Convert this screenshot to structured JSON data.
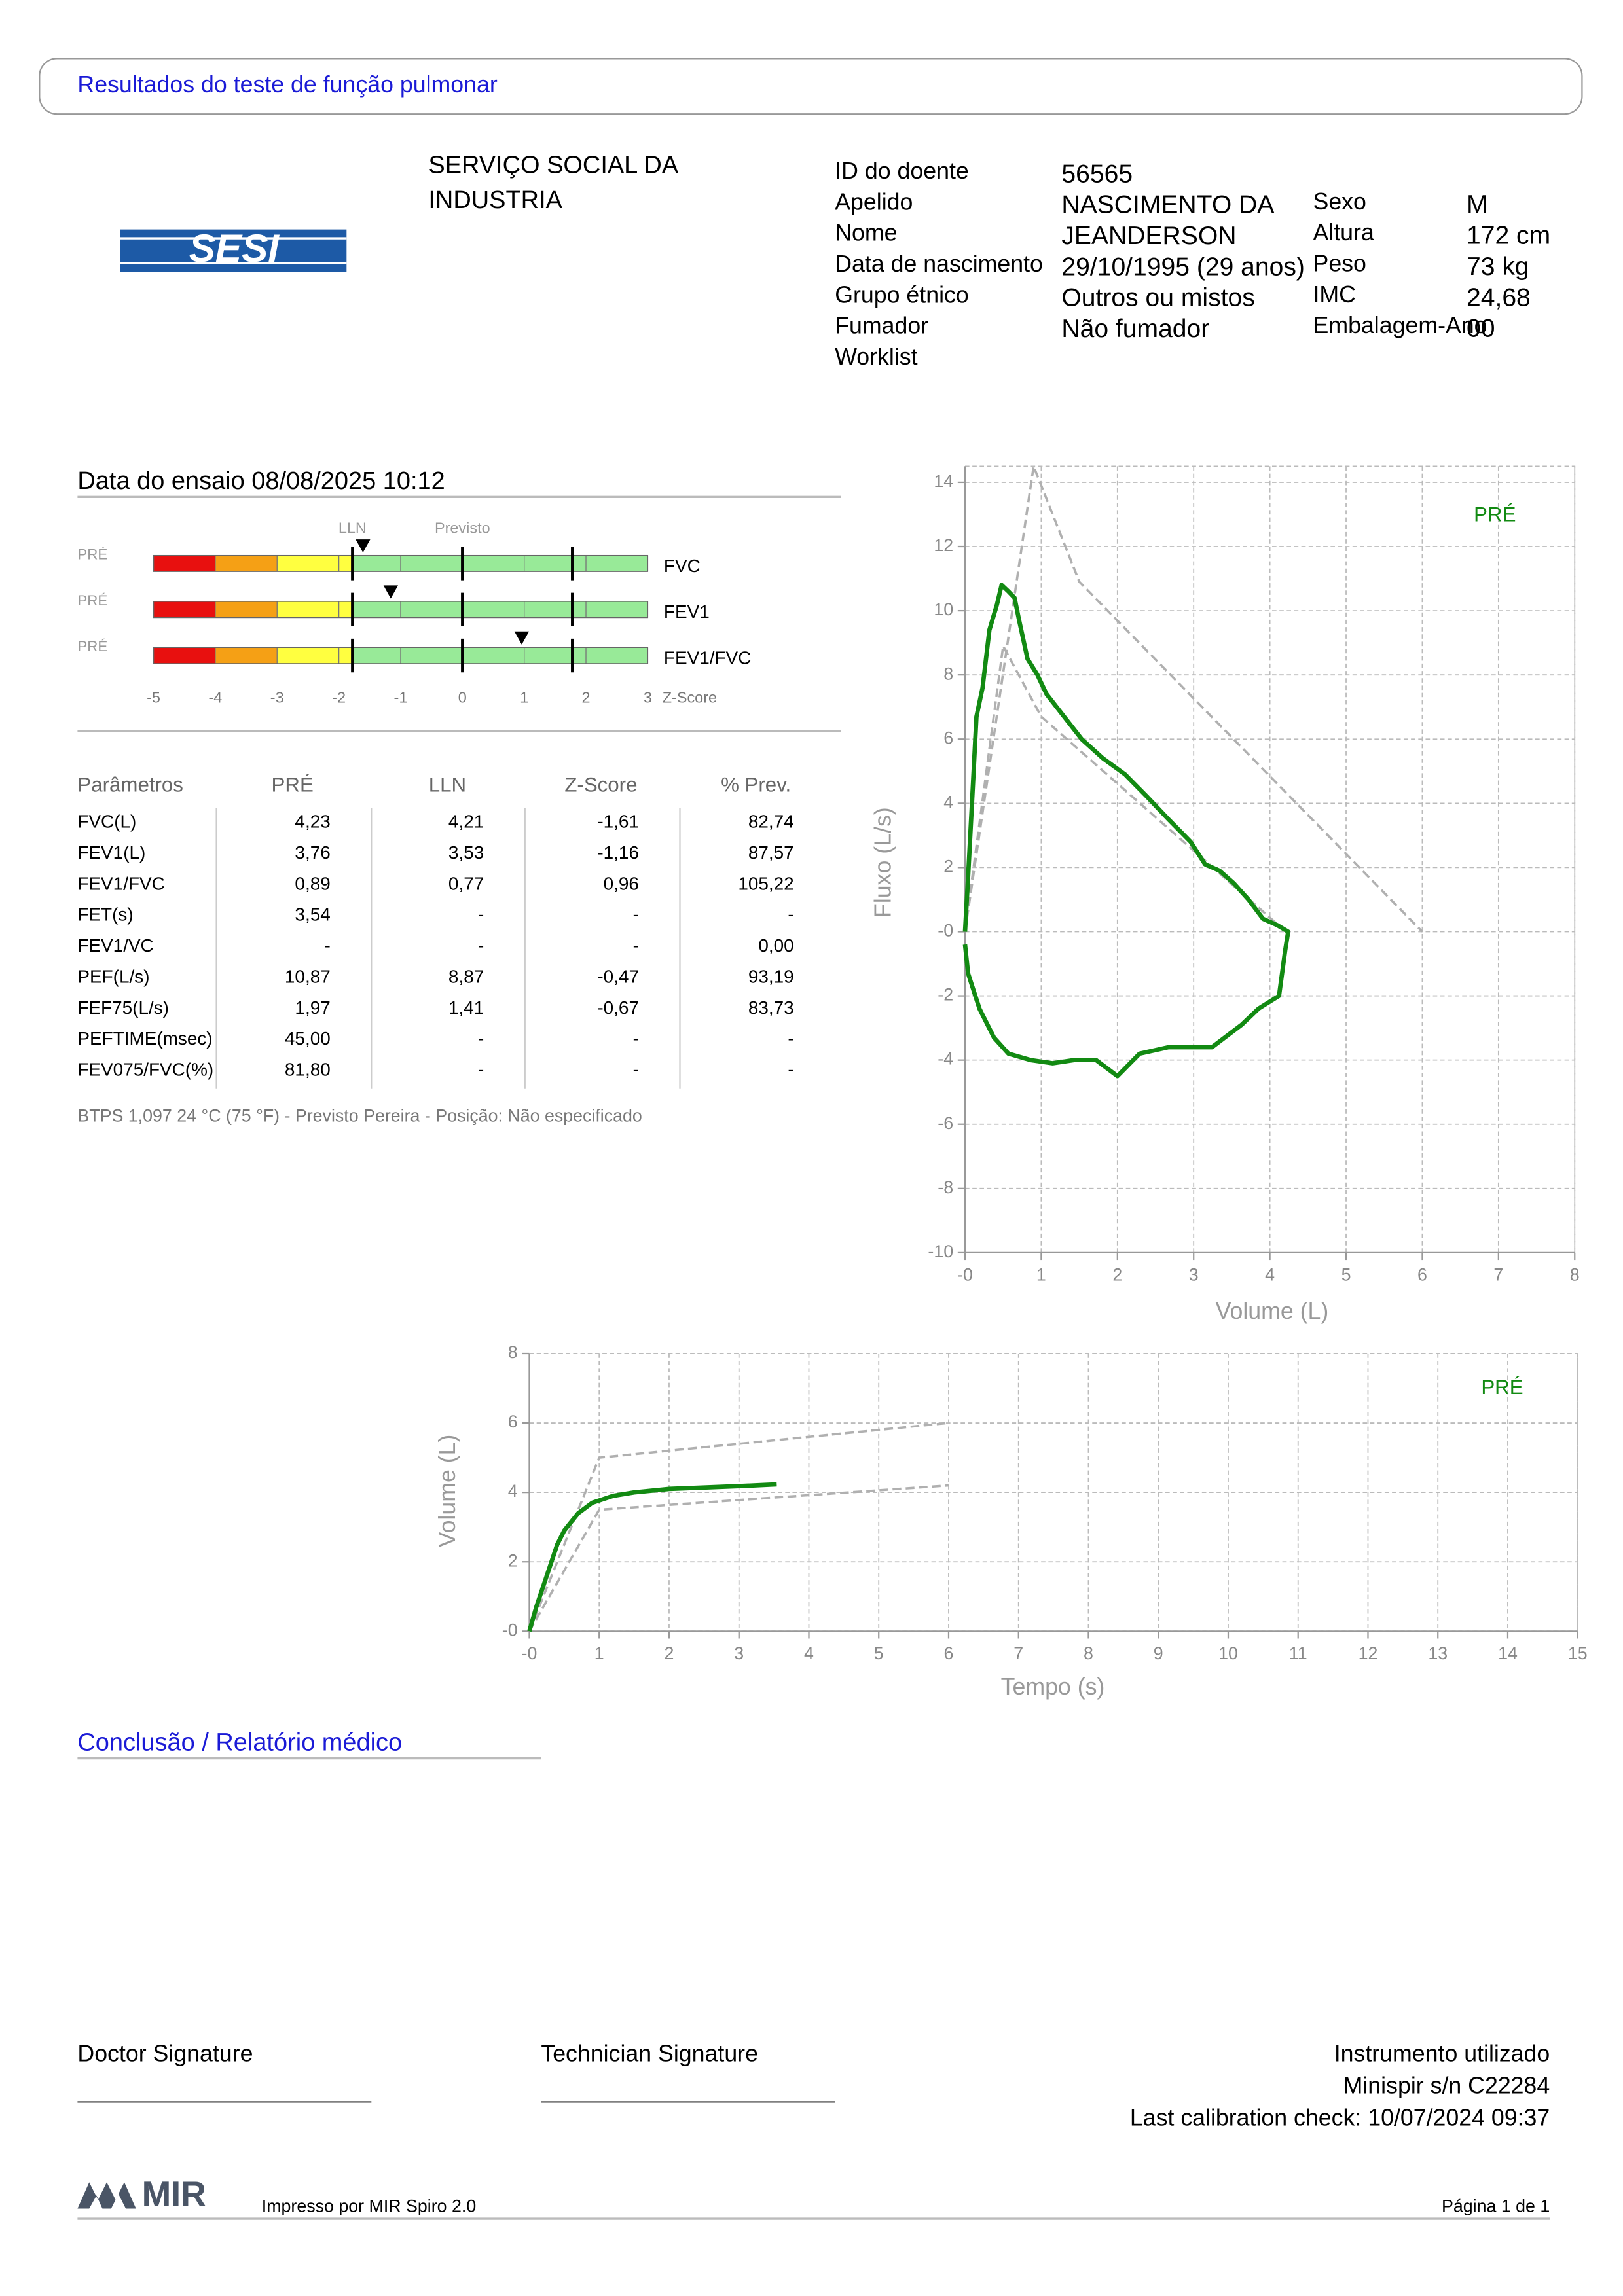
{
  "header": {
    "title": "Resultados do teste de função pulmonar",
    "logo": "SESI",
    "institution": [
      "SERVIÇO SOCIAL DA",
      "INDUSTRIA"
    ]
  },
  "patient": {
    "left": [
      {
        "label": "ID do doente",
        "value": "56565"
      },
      {
        "label": "Apelido",
        "value": "NASCIMENTO DA"
      },
      {
        "label": "Nome",
        "value": "JEANDERSON"
      },
      {
        "label": "Data de nascimento",
        "value": "29/10/1995 (29 anos)"
      },
      {
        "label": "Grupo étnico",
        "value": "Outros ou mistos"
      },
      {
        "label": "Fumador",
        "value": "Não fumador"
      },
      {
        "label": "Worklist"
      }
    ],
    "right": [
      {
        "label": "Sexo",
        "value": "M"
      },
      {
        "label": "Altura",
        "value": "172 cm"
      },
      {
        "label": "Peso",
        "value": "73 kg"
      },
      {
        "label": "IMC",
        "value": "24,68"
      },
      {
        "label": "Embalagem-Ano",
        "value": "00"
      }
    ]
  },
  "test_date": "Data do ensaio 08/08/2025 10:12",
  "zscore_chart": {
    "type": "zscore",
    "xlim": [
      -5,
      3
    ],
    "xticks": [
      -5,
      -4,
      -3,
      -2,
      -1,
      0,
      1,
      2,
      3
    ],
    "x_label": "Z-Score",
    "labels": {
      "lln": "LLN",
      "predicted": "Previsto"
    },
    "lines": [
      -1.78,
      0,
      1.78
    ],
    "zones": [
      {
        "from": -5,
        "to": -4,
        "color": "#e8100f"
      },
      {
        "from": -4,
        "to": -3,
        "color": "#f5a015"
      },
      {
        "from": -3,
        "to": -1.78,
        "color": "#ffff40"
      },
      {
        "from": -1.78,
        "to": 3,
        "color": "#98ea98"
      }
    ],
    "rows": [
      {
        "group": "PRÉ",
        "name": "FVC",
        "value": -1.61
      },
      {
        "group": "PRÉ",
        "name": "FEV1",
        "value": -1.16
      },
      {
        "group": "PRÉ",
        "name": "FEV1/FVC",
        "value": 0.96
      }
    ]
  },
  "table": {
    "header": [
      "Parâmetros",
      "PRÉ",
      "LLN",
      "Z-Score",
      "% Prev."
    ],
    "rows": [
      [
        "FVC(L)",
        "4,23",
        "4,21",
        "-1,61",
        "82,74"
      ],
      [
        "FEV1(L)",
        "3,76",
        "3,53",
        "-1,16",
        "87,57"
      ],
      [
        "FEV1/FVC",
        "0,89",
        "0,77",
        "0,96",
        "105,22"
      ],
      [
        "FET(s)",
        "3,54",
        "-",
        "-",
        "-"
      ],
      [
        "FEV1/VC",
        "-",
        "-",
        "-",
        "0,00"
      ],
      [
        "PEF(L/s)",
        "10,87",
        "8,87",
        "-0,47",
        "93,19"
      ],
      [
        "FEF75(L/s)",
        "1,97",
        "1,41",
        "-0,67",
        "83,73"
      ],
      [
        "PEFTIME(msec)",
        "45,00",
        "-",
        "-",
        "-"
      ],
      [
        "FEV075/FVC(%)",
        "81,80",
        "-",
        "-",
        "-"
      ]
    ]
  },
  "note": "BTPS 1,097 24 °C (75 °F) - Previsto Pereira - Posição: Não especificado",
  "chart_data": [
    {
      "type": "line",
      "x_label": "Volume (L)",
      "y_label": "Fluxo (L/s)",
      "xlim": [
        0,
        8
      ],
      "ylim": [
        -10,
        14.5
      ],
      "xticks": [
        {
          "value": 0,
          "label": "-0"
        },
        1,
        2,
        3,
        4,
        5,
        6,
        7,
        8
      ],
      "yticks": [
        -10,
        -8,
        -6,
        -4,
        -2,
        {
          "value": 0,
          "label": "-0"
        },
        2,
        4,
        6,
        8,
        10,
        12,
        14
      ],
      "grid": true,
      "series": [
        {
          "color": "#b0b0b0",
          "dashed": true,
          "x": [
            0,
            0.9,
            1.5,
            6
          ],
          "y": [
            0,
            14.5,
            10.9,
            0
          ]
        },
        {
          "color": "#b0b0b0",
          "dashed": true,
          "x": [
            0,
            0.5,
            1,
            4.21
          ],
          "y": [
            0,
            8.9,
            6.7,
            0
          ]
        },
        {
          "name": "PRÉ",
          "color": "#128a12",
          "x": [
            0,
            0.04,
            0.1,
            0.15,
            0.23,
            0.32,
            0.42,
            0.48,
            0.57,
            0.65,
            0.71,
            0.82,
            0.95,
            1.07,
            1.3,
            1.53,
            1.81,
            2.1,
            2.39,
            2.67,
            2.96,
            3.15,
            3.34,
            3.53,
            3.72,
            3.91,
            4.1,
            4.24,
            4.2,
            4.12,
            3.85,
            3.63,
            3.24,
            2.67,
            2.29,
            2.0,
            1.72,
            1.43,
            1.15,
            0.86,
            0.57,
            0.38,
            0.19,
            0.04,
            0
          ],
          "y": [
            0,
            1.7,
            4.4,
            6.7,
            7.6,
            9.4,
            10.2,
            10.8,
            10.6,
            10.4,
            9.7,
            8.5,
            8.0,
            7.4,
            6.7,
            6.0,
            5.4,
            4.9,
            4.2,
            3.5,
            2.8,
            2.1,
            1.9,
            1.5,
            1.0,
            0.4,
            0.2,
            0,
            -0.6,
            -2.0,
            -2.4,
            -2.9,
            -3.6,
            -3.6,
            -3.8,
            -4.5,
            -4.0,
            -4.0,
            -4.1,
            -4.0,
            -3.8,
            -3.3,
            -2.4,
            -1.3,
            -0.4
          ]
        }
      ]
    },
    {
      "type": "line",
      "x_label": "Tempo (s)",
      "y_label": "Volume (L)",
      "xlim": [
        0,
        15
      ],
      "ylim": [
        0,
        8
      ],
      "xticks": [
        {
          "value": 0,
          "label": "-0"
        },
        1,
        2,
        3,
        4,
        5,
        6,
        7,
        8,
        9,
        10,
        11,
        12,
        13,
        14,
        15
      ],
      "yticks": [
        {
          "value": 0,
          "label": "-0"
        },
        2,
        4,
        6,
        8
      ],
      "grid": true,
      "series": [
        {
          "color": "#b0b0b0",
          "dashed": true,
          "x": [
            0,
            1,
            6
          ],
          "y": [
            0,
            5.0,
            6.0
          ]
        },
        {
          "color": "#b0b0b0",
          "dashed": true,
          "x": [
            0,
            1,
            6
          ],
          "y": [
            0,
            3.5,
            4.2
          ]
        },
        {
          "name": "PRÉ",
          "color": "#128a12",
          "x": [
            0,
            0.1,
            0.2,
            0.3,
            0.4,
            0.5,
            0.7,
            0.9,
            1.2,
            1.5,
            2,
            2.5,
            3,
            3.54
          ],
          "y": [
            0,
            0.7,
            1.3,
            1.9,
            2.5,
            2.9,
            3.4,
            3.7,
            3.9,
            4.0,
            4.1,
            4.14,
            4.18,
            4.23
          ]
        }
      ]
    }
  ],
  "conclusion": {
    "title": "Conclusão / Relatório médico"
  },
  "signatures": {
    "doctor": "Doctor Signature",
    "technician": "Technician Signature"
  },
  "instrument": [
    "Instrumento utilizado",
    "Minispir s/n C22284",
    "Last calibration check: 10/07/2024 09:37"
  ],
  "footer": {
    "logo": "MIR",
    "printed_by": "Impresso por MIR Spiro 2.0",
    "page": "Página 1 de 1"
  }
}
